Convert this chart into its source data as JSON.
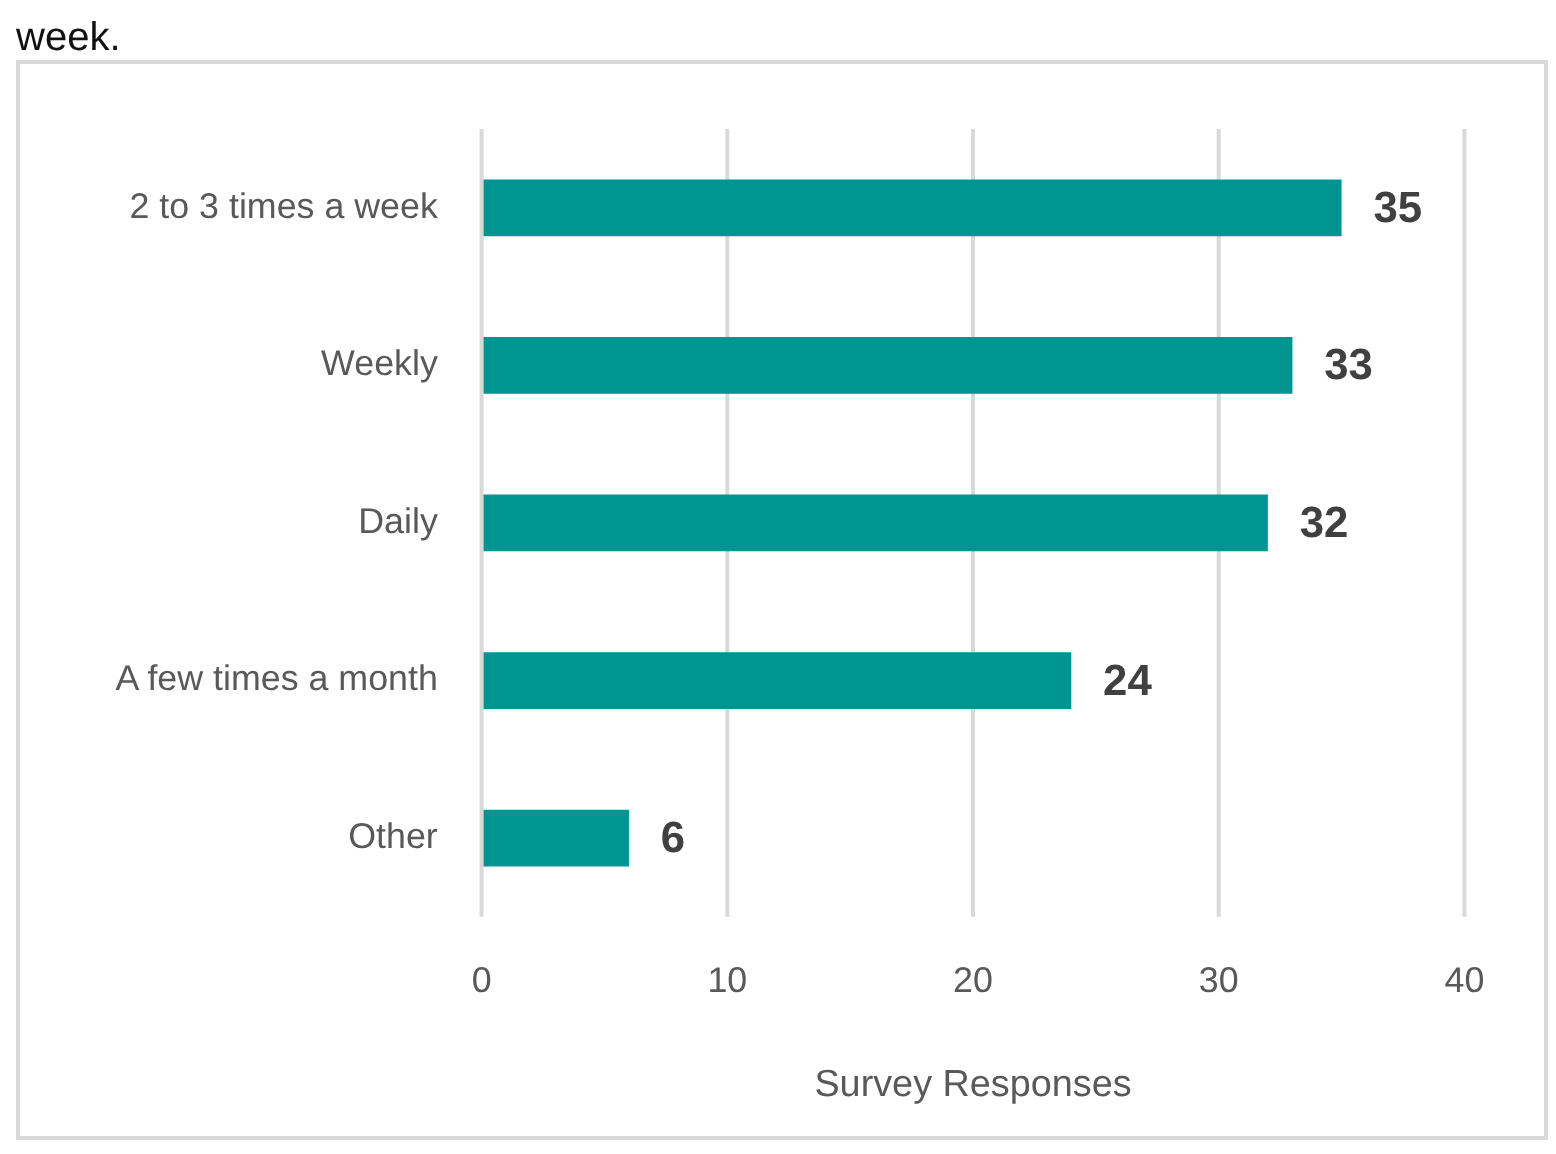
{
  "chart_data": {
    "type": "bar",
    "title": "week.",
    "orientation": "horizontal",
    "categories": [
      "2 to 3 times a week",
      "Weekly",
      "Daily",
      "A few times a month",
      "Other"
    ],
    "values": [
      35,
      33,
      32,
      24,
      6
    ],
    "color": "#009590",
    "xlabel": "Survey Responses",
    "xlim": [
      0,
      40
    ],
    "xticks": [
      0,
      10,
      20,
      30,
      40
    ],
    "grid": "x",
    "data_labels": true,
    "legend": false
  }
}
